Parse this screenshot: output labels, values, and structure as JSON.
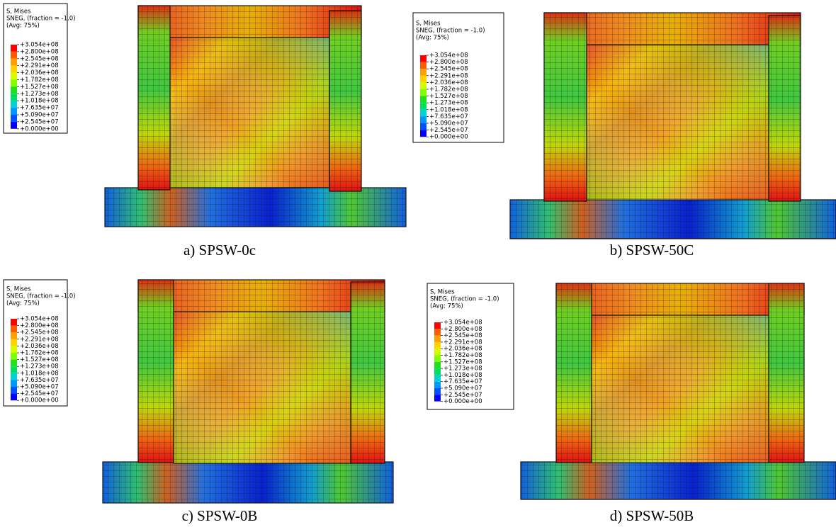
{
  "legend_colors": [
    "#ff0000",
    "#ff5a00",
    "#ffa000",
    "#ffd200",
    "#d2ff00",
    "#80ff00",
    "#20e020",
    "#00e060",
    "#00d2d2",
    "#0096ff",
    "#0050ff",
    "#0000ff"
  ],
  "panels": [
    {
      "legend_title": [
        "S, Mises",
        "SNEG, (fraction = -1.0)",
        "(Avg: 75%)"
      ],
      "legend_values": [
        "+3.054e+08",
        "+2.800e+08",
        "+2.545e+08",
        "+2.291e+08",
        "+2.036e+08",
        "+1.782e+08",
        "+1.527e+08",
        "+1.273e+08",
        "+1.018e+08",
        "+7.635e+07",
        "+5.090e+07",
        "+2.545e+07",
        "+0.000e+00"
      ],
      "caption": "a) SPSW-0c"
    },
    {
      "legend_title": [
        "S, Mises",
        "SNEG, (fraction = -1.0)",
        "(Avg: 75%)"
      ],
      "legend_values": [
        "+3.054e+08",
        "+2.800e+08",
        "+2.545e+08",
        "+2.291e+08",
        "+2.036e+08",
        "+1.782e+08",
        "+1.527e+08",
        "+1.273e+08",
        "+1.018e+08",
        "+7.635e+07",
        "+5.090e+07",
        "+2.545e+07",
        "+0.000e+00"
      ],
      "caption": "b) SPSW-50C"
    },
    {
      "legend_title": [
        "S, Mises",
        "SNEG, (fraction = -1.0)",
        "(Avg: 75%)"
      ],
      "legend_values": [
        "+3.054e+08",
        "+2.800e+08",
        "+2.545e+08",
        "+2.291e+08",
        "+2.036e+08",
        "+1.782e+08",
        "+1.527e+08",
        "+1.273e+08",
        "+1.018e+08",
        "+7.635e+07",
        "+5.090e+07",
        "+2.545e+07",
        "+0.000e+00"
      ],
      "caption": "c) SPSW-0B"
    },
    {
      "legend_title": [
        "S, Mises",
        "SNEG, (fraction = -1.0)",
        "(Avg: 75%)"
      ],
      "legend_values": [
        "+3.054e+08",
        "+2.800e+08",
        "+2.545e+08",
        "+2.291e+08",
        "+2.036e+08",
        "+1.782e+08",
        "+1.527e+08",
        "+1.273e+08",
        "+1.018e+08",
        "+7.635e+07",
        "+5.090e+07",
        "+2.545e+07",
        "+0.000e+00"
      ],
      "caption": "d) SPSW-50B"
    }
  ]
}
